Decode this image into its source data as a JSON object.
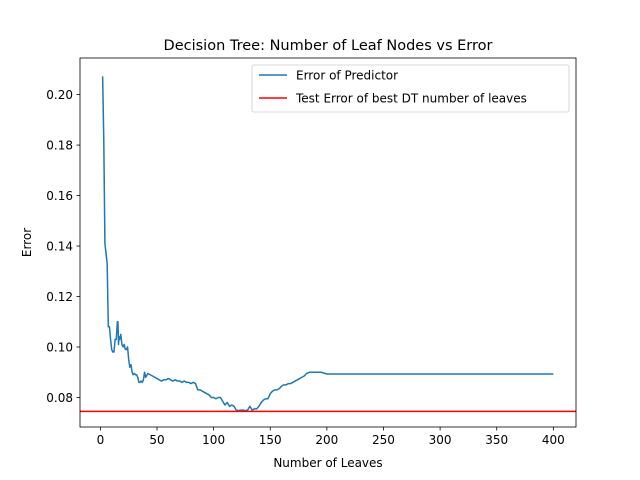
{
  "chart_data": {
    "type": "line",
    "title": "Decision Tree: Number of Leaf Nodes vs Error",
    "xlabel": "Number of Leaves",
    "ylabel": "Error",
    "xlim": [
      -18,
      420
    ],
    "ylim": [
      0.0683,
      0.2145
    ],
    "xticks": [
      0,
      50,
      100,
      150,
      200,
      250,
      300,
      350,
      400
    ],
    "yticks": [
      0.08,
      0.1,
      0.12,
      0.14,
      0.16,
      0.18,
      0.2
    ],
    "ytick_labels": [
      "0.08",
      "0.10",
      "0.12",
      "0.14",
      "0.16",
      "0.18",
      "0.20"
    ],
    "grid": false,
    "legend_position": "upper-right",
    "series": [
      {
        "name": "Error of Predictor",
        "color": "#1f77b4",
        "x": [
          2,
          3,
          4,
          5,
          6,
          7,
          8,
          9,
          10,
          11,
          12,
          13,
          14,
          15,
          15.5,
          16,
          16.5,
          17,
          18,
          19,
          20,
          21,
          22,
          23,
          24,
          25,
          26,
          27,
          28,
          29,
          30,
          31,
          32,
          33,
          34,
          35,
          36,
          37,
          38,
          39,
          40,
          42,
          44,
          46,
          48,
          50,
          52,
          54,
          56,
          58,
          60,
          62,
          64,
          66,
          68,
          70,
          72,
          74,
          76,
          78,
          80,
          82,
          84,
          86,
          88,
          90,
          92,
          94,
          96,
          98,
          100,
          102,
          104,
          106,
          108,
          110,
          112,
          114,
          116,
          118,
          120,
          122,
          124,
          126,
          128,
          130,
          132,
          134,
          136,
          138,
          140,
          142,
          144,
          146,
          148,
          150,
          152,
          154,
          156,
          158,
          160,
          162,
          164,
          166,
          168,
          170,
          172,
          174,
          176,
          178,
          180,
          182,
          185,
          190,
          195,
          200,
          250,
          300,
          350,
          400
        ],
        "values": [
          0.2072,
          0.182,
          0.141,
          0.137,
          0.133,
          0.108,
          0.108,
          0.103,
          0.099,
          0.098,
          0.098,
          0.103,
          0.103,
          0.11,
          0.11,
          0.101,
          0.104,
          0.103,
          0.105,
          0.101,
          0.1,
          0.101,
          0.099,
          0.099,
          0.1,
          0.095,
          0.092,
          0.093,
          0.09,
          0.089,
          0.0895,
          0.089,
          0.089,
          0.088,
          0.086,
          0.086,
          0.0865,
          0.086,
          0.087,
          0.09,
          0.088,
          0.0895,
          0.089,
          0.0885,
          0.088,
          0.0875,
          0.087,
          0.0865,
          0.087,
          0.087,
          0.0875,
          0.087,
          0.0865,
          0.087,
          0.0865,
          0.0865,
          0.086,
          0.0865,
          0.086,
          0.086,
          0.0855,
          0.086,
          0.0855,
          0.083,
          0.083,
          0.0825,
          0.082,
          0.0815,
          0.081,
          0.08,
          0.08,
          0.0795,
          0.08,
          0.08,
          0.0785,
          0.077,
          0.078,
          0.0765,
          0.077,
          0.0765,
          0.075,
          0.0748,
          0.075,
          0.075,
          0.0748,
          0.075,
          0.0765,
          0.075,
          0.0755,
          0.0755,
          0.0765,
          0.078,
          0.079,
          0.0795,
          0.0795,
          0.0815,
          0.0825,
          0.083,
          0.083,
          0.0835,
          0.0845,
          0.085,
          0.085,
          0.0855,
          0.0855,
          0.086,
          0.0865,
          0.087,
          0.0875,
          0.088,
          0.0885,
          0.0895,
          0.09,
          0.09,
          0.09,
          0.0893,
          0.0893,
          0.0893,
          0.0893,
          0.0893
        ]
      },
      {
        "name": "Test Error of best DT number of leaves",
        "color": "#ff0000",
        "type": "hline",
        "y": 0.0745
      }
    ]
  }
}
